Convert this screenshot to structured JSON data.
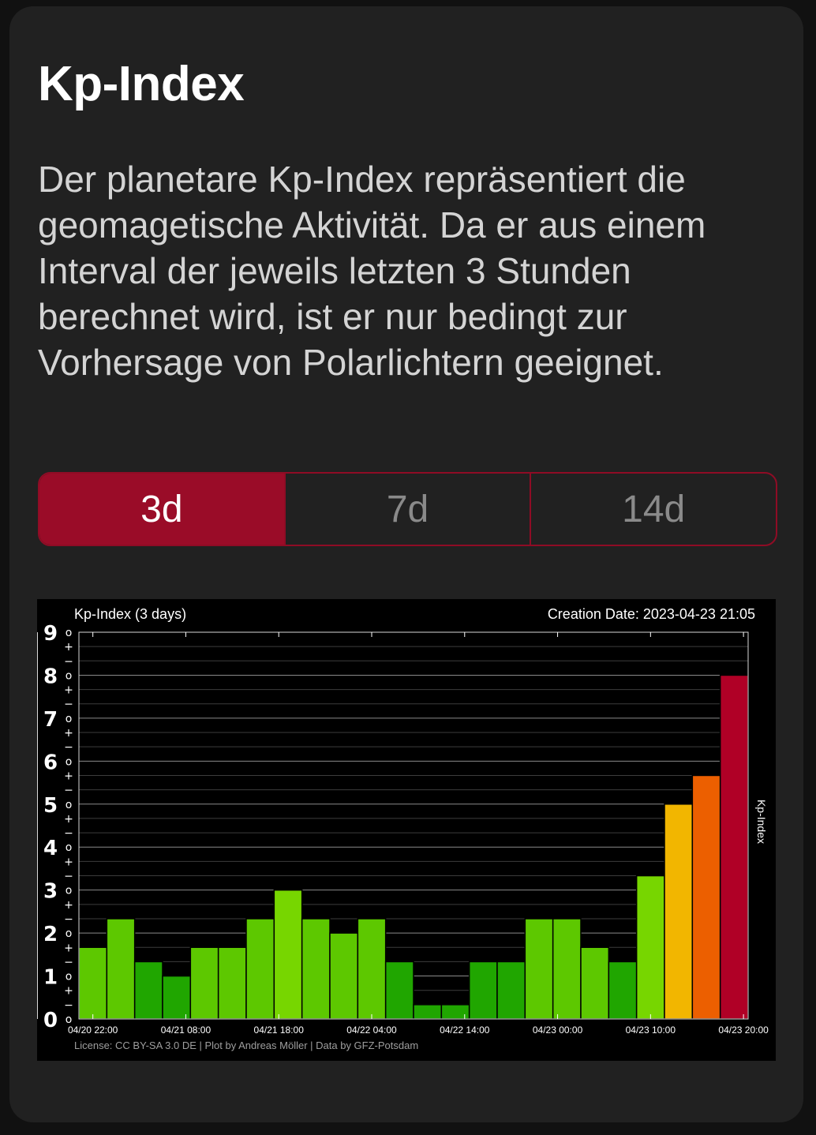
{
  "card": {
    "title": "Kp-Index",
    "description": "Der planetare Kp-Index repräsentiert die geomagetische Aktivität. Da er aus einem Interval der jeweils letzten 3 Stunden berechnet wird, ist er nur bedingt zur Vorhersage von Polarlichtern geeignet."
  },
  "range_selector": {
    "options": [
      {
        "label": "3d",
        "active": true
      },
      {
        "label": "7d",
        "active": false
      },
      {
        "label": "14d",
        "active": false
      }
    ]
  },
  "chart_data": {
    "type": "bar",
    "title": "Kp-Index (3 days)",
    "creation_date": "Creation Date: 2023-04-23 21:05",
    "ylabel": "Kp-Index",
    "license": "License: CC BY-SA 3.0 DE | Plot by Andreas Möller | Data by GFZ-Potsdam",
    "ylim": [
      0,
      9
    ],
    "grid": true,
    "y_ticks": [
      "0",
      "1",
      "2",
      "3",
      "4",
      "5",
      "6",
      "7",
      "8",
      "9"
    ],
    "x_tick_labels": [
      "04/20 22:00",
      "04/21 08:00",
      "04/21 18:00",
      "04/22 04:00",
      "04/22 14:00",
      "04/23 00:00",
      "04/23 10:00",
      "04/23 20:00"
    ],
    "values": [
      1.667,
      2.333,
      1.333,
      1.0,
      1.667,
      1.667,
      2.333,
      3.0,
      2.333,
      2.0,
      2.333,
      1.333,
      0.333,
      0.333,
      1.333,
      1.333,
      2.333,
      2.333,
      1.667,
      1.333,
      3.333,
      5.0,
      5.667,
      8.0
    ],
    "bar_colors": [
      "#5dc800",
      "#5dc800",
      "#20a600",
      "#20a600",
      "#5dc800",
      "#5dc800",
      "#5dc800",
      "#77d600",
      "#5dc800",
      "#5dc800",
      "#5dc800",
      "#20a600",
      "#20a600",
      "#20a600",
      "#20a600",
      "#20a600",
      "#5dc800",
      "#5dc800",
      "#5dc800",
      "#20a600",
      "#77d600",
      "#f2b600",
      "#ec5f00",
      "#b00026"
    ]
  }
}
